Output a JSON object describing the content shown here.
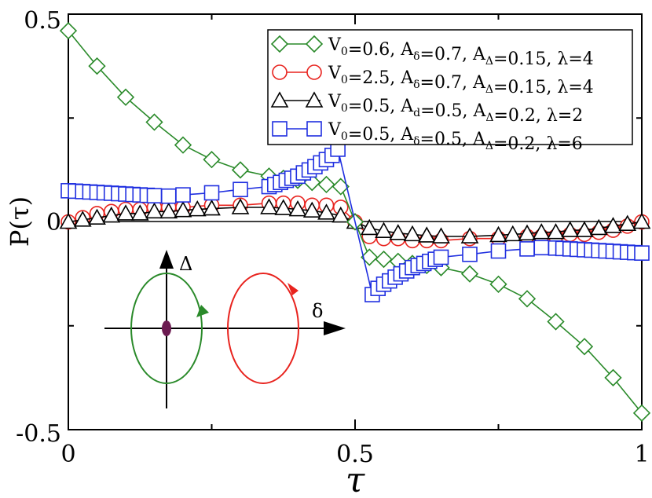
{
  "chart_data": {
    "type": "line",
    "xlabel": "τ",
    "ylabel": "P(τ)",
    "xlim": [
      0,
      1
    ],
    "ylim": [
      -0.5,
      0.5
    ],
    "x_ticks": [
      "0",
      "0.5",
      "1"
    ],
    "y_ticks": [
      "0.5",
      "0",
      "-0.5"
    ],
    "grid": false,
    "legend_position": "top-right",
    "series": [
      {
        "name": "V0=0.6, Aδ=0.7, AΔ=0.15, λ=4",
        "color": "#2a8a2a",
        "marker": "diamond",
        "legend": [
          {
            "t": "V"
          },
          {
            "t": "0",
            "sub": true
          },
          {
            "t": "=0.6, A"
          },
          {
            "t": "δ",
            "sub": true
          },
          {
            "t": "=0.7, A"
          },
          {
            "t": "Δ",
            "sub": true
          },
          {
            "t": "=0.15, λ=4"
          }
        ],
        "x": [
          0,
          0.05,
          0.1,
          0.15,
          0.2,
          0.25,
          0.3,
          0.35,
          0.375,
          0.4,
          0.425,
          0.45,
          0.475,
          0.5,
          0.525,
          0.55,
          0.575,
          0.6,
          0.625,
          0.65,
          0.7,
          0.75,
          0.8,
          0.85,
          0.9,
          0.95,
          1.0
        ],
        "y": [
          0.46,
          0.375,
          0.3,
          0.24,
          0.185,
          0.15,
          0.125,
          0.11,
          0.105,
          0.1,
          0.095,
          0.09,
          0.085,
          0.0,
          -0.085,
          -0.09,
          -0.095,
          -0.1,
          -0.105,
          -0.11,
          -0.125,
          -0.15,
          -0.185,
          -0.24,
          -0.3,
          -0.375,
          -0.46
        ]
      },
      {
        "name": "V0=2.5, Aδ=0.7, AΔ=0.15, λ=4",
        "color": "#e8231e",
        "marker": "circle",
        "legend": [
          {
            "t": "V"
          },
          {
            "t": "0",
            "sub": true
          },
          {
            "t": "=2.5, A"
          },
          {
            "t": "δ",
            "sub": true
          },
          {
            "t": "=0.7, A"
          },
          {
            "t": "Δ",
            "sub": true
          },
          {
            "t": "=0.15, λ=4"
          }
        ],
        "x": [
          0,
          0.025,
          0.05,
          0.075,
          0.1,
          0.125,
          0.15,
          0.175,
          0.2,
          0.25,
          0.3,
          0.35,
          0.375,
          0.4,
          0.425,
          0.45,
          0.475,
          0.5,
          0.525,
          0.55,
          0.575,
          0.6,
          0.625,
          0.65,
          0.7,
          0.75,
          0.8,
          0.825,
          0.85,
          0.875,
          0.9,
          0.925,
          0.95,
          0.975,
          1.0
        ],
        "y": [
          0.0,
          0.01,
          0.02,
          0.025,
          0.03,
          0.03,
          0.035,
          0.035,
          0.035,
          0.04,
          0.04,
          0.045,
          0.045,
          0.045,
          0.04,
          0.04,
          0.035,
          0.0,
          -0.035,
          -0.04,
          -0.04,
          -0.045,
          -0.045,
          -0.045,
          -0.04,
          -0.04,
          -0.035,
          -0.035,
          -0.035,
          -0.03,
          -0.03,
          -0.025,
          -0.02,
          -0.01,
          0.0
        ]
      },
      {
        "name": "V0=0.5, Ad=0.5, AΔ=0.2, λ=2",
        "color": "#000000",
        "marker": "triangle",
        "legend": [
          {
            "t": "V"
          },
          {
            "t": "0",
            "sub": true
          },
          {
            "t": "=0.5, A"
          },
          {
            "t": "d",
            "sub": true
          },
          {
            "t": "=0.5, A"
          },
          {
            "t": "Δ",
            "sub": true
          },
          {
            "t": "=0.2, λ=2"
          }
        ],
        "x": [
          0,
          0.025,
          0.05,
          0.075,
          0.1,
          0.125,
          0.15,
          0.175,
          0.2,
          0.225,
          0.25,
          0.3,
          0.35,
          0.375,
          0.4,
          0.425,
          0.45,
          0.475,
          0.5,
          0.525,
          0.55,
          0.575,
          0.6,
          0.625,
          0.65,
          0.7,
          0.75,
          0.775,
          0.8,
          0.825,
          0.85,
          0.875,
          0.9,
          0.925,
          0.95,
          0.975,
          1.0
        ],
        "y": [
          0.0,
          0.005,
          0.01,
          0.015,
          0.02,
          0.02,
          0.025,
          0.025,
          0.028,
          0.03,
          0.032,
          0.035,
          0.035,
          0.033,
          0.03,
          0.027,
          0.022,
          0.015,
          0.0,
          -0.015,
          -0.022,
          -0.027,
          -0.03,
          -0.033,
          -0.035,
          -0.035,
          -0.032,
          -0.03,
          -0.028,
          -0.025,
          -0.025,
          -0.02,
          -0.02,
          -0.015,
          -0.01,
          -0.005,
          0.0
        ]
      },
      {
        "name": "V0=0.5, Aδ=0.5, AΔ=0.2, λ=6",
        "color": "#1f2fe0",
        "marker": "square",
        "legend": [
          {
            "t": "V"
          },
          {
            "t": "0",
            "sub": true
          },
          {
            "t": "=0.5,  A"
          },
          {
            "t": "δ",
            "sub": true
          },
          {
            "t": "=0.5, A"
          },
          {
            "t": "Δ",
            "sub": true
          },
          {
            "t": "=0.2, λ=6"
          }
        ],
        "x": [
          0,
          0.0125,
          0.025,
          0.0375,
          0.05,
          0.0625,
          0.075,
          0.0875,
          0.1,
          0.1125,
          0.125,
          0.1375,
          0.15,
          0.175,
          0.2,
          0.25,
          0.3,
          0.35,
          0.36,
          0.37,
          0.38,
          0.39,
          0.4,
          0.41,
          0.42,
          0.43,
          0.44,
          0.45,
          0.46,
          0.47,
          0.53,
          0.54,
          0.55,
          0.56,
          0.57,
          0.58,
          0.59,
          0.6,
          0.61,
          0.62,
          0.63,
          0.64,
          0.65,
          0.7,
          0.75,
          0.8,
          0.825,
          0.85,
          0.8625,
          0.875,
          0.8875,
          0.9,
          0.9125,
          0.925,
          0.9375,
          0.95,
          0.9625,
          0.975,
          0.9875,
          1.0
        ],
        "y": [
          0.075,
          0.074,
          0.073,
          0.072,
          0.071,
          0.07,
          0.069,
          0.068,
          0.067,
          0.066,
          0.065,
          0.064,
          0.063,
          0.062,
          0.065,
          0.07,
          0.078,
          0.085,
          0.09,
          0.095,
          0.1,
          0.105,
          0.11,
          0.118,
          0.125,
          0.133,
          0.142,
          0.15,
          0.16,
          0.175,
          -0.175,
          -0.16,
          -0.15,
          -0.142,
          -0.133,
          -0.125,
          -0.118,
          -0.11,
          -0.105,
          -0.1,
          -0.095,
          -0.09,
          -0.085,
          -0.078,
          -0.07,
          -0.065,
          -0.062,
          -0.063,
          -0.064,
          -0.065,
          -0.066,
          -0.067,
          -0.068,
          -0.069,
          -0.07,
          -0.071,
          -0.072,
          -0.073,
          -0.074,
          -0.075
        ]
      }
    ]
  },
  "inset": {
    "delta_axis_label": "Δ",
    "small_delta_axis_label": "δ",
    "green_color": "#2a8a2a",
    "red_color": "#e8231e",
    "dot_color": "#6b1a50"
  }
}
